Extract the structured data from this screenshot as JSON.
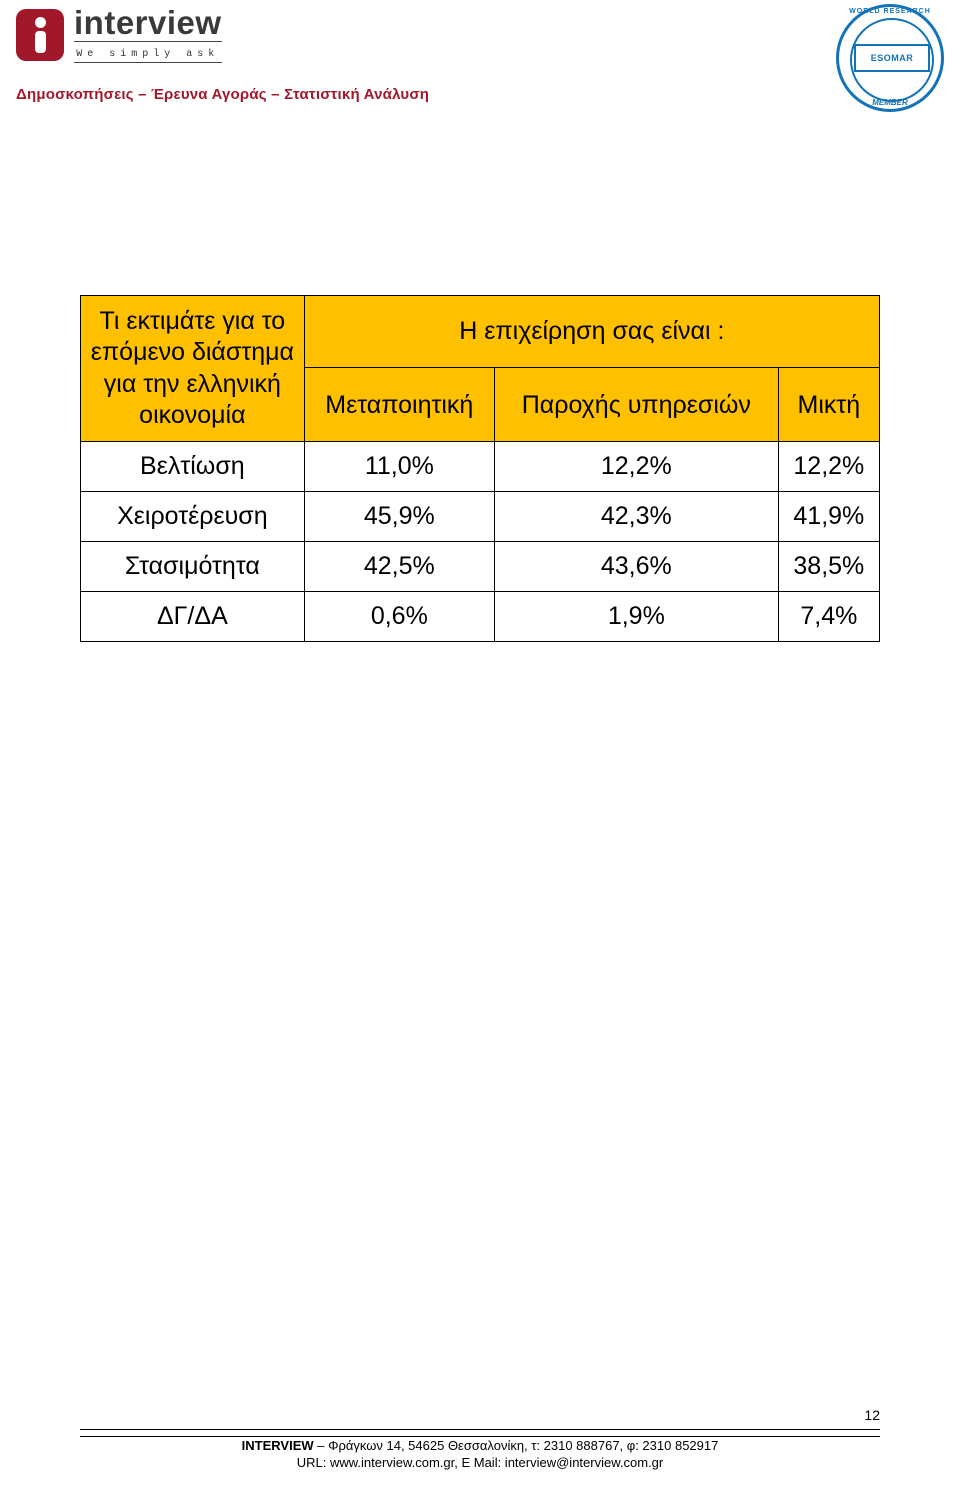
{
  "brand": {
    "name": "interview",
    "tagline": "We simply ask",
    "subheader": "Δημοσκοπήσεις – Έρευνα Αγοράς – Στατιστική Ανάλυση",
    "badge_bg": "#a0182a",
    "text_color": "#3a3a3a"
  },
  "esomar": {
    "label": "ESOMAR",
    "arc_top": "WORLD RESEARCH",
    "arc_bottom": "MEMBER",
    "ring_color": "#1373b8"
  },
  "table": {
    "header_bg": "#ffc000",
    "border_color": "#000000",
    "font_size_pt": 19,
    "row_header": "Τι εκτιμάτε για το επόμενο διάστημα για την ελληνική οικονομία",
    "super_header": "Η επιχείρηση σας είναι :",
    "columns": [
      "Μεταποιητική",
      "Παροχής υπηρεσιών",
      "Μικτή"
    ],
    "rows": [
      {
        "label": "Βελτίωση",
        "values": [
          "11,0%",
          "12,2%",
          "12,2%"
        ]
      },
      {
        "label": "Χειροτέρευση",
        "values": [
          "45,9%",
          "42,3%",
          "41,9%"
        ]
      },
      {
        "label": "Στασιμότητα",
        "values": [
          "42,5%",
          "43,6%",
          "38,5%"
        ]
      },
      {
        "label": "ΔΓ/ΔΑ",
        "values": [
          "0,6%",
          "1,9%",
          "7,4%"
        ]
      }
    ]
  },
  "footer": {
    "page_number": "12",
    "line1": "INTERVIEW – Φράγκων 14, 54625 Θεσσαλονίκη, τ: 2310 888767, φ: 2310 852917",
    "line2": "URL: www.interview.com.gr, E Mail: interview@interview.com.gr",
    "company_bold": "INTERVIEW"
  }
}
